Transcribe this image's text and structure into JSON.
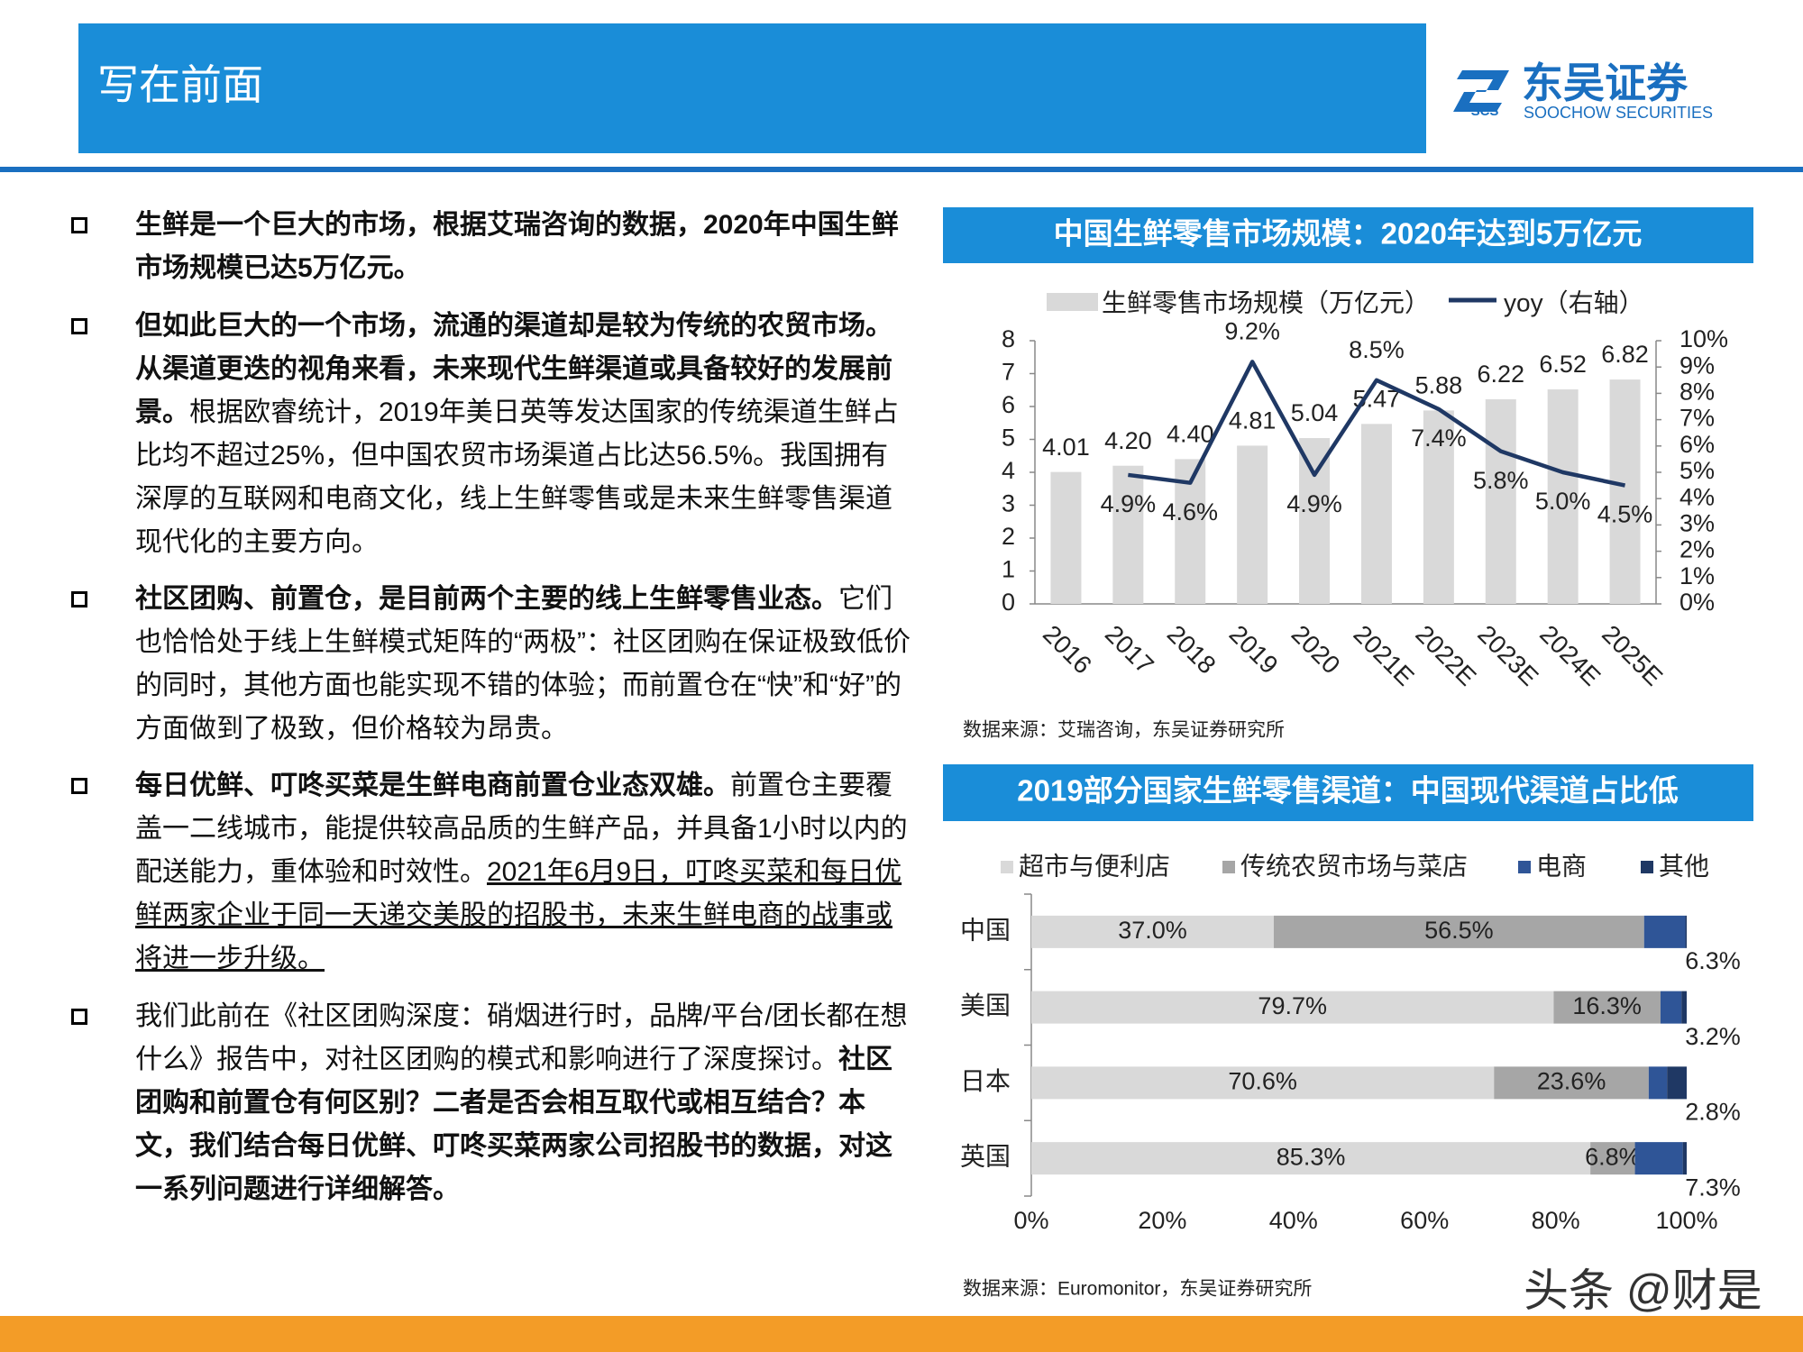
{
  "header": {
    "title": "写在前面",
    "logo_name": "东吴证券",
    "logo_en": "SOOCHOW SECURITIES",
    "logo_abbr": "SCS"
  },
  "bullets": [
    {
      "segments": [
        {
          "text": "生鲜是一个巨大的市场，根据艾瑞咨询的数据，2020年中国生鲜市场规模已达5万亿元。",
          "style": "bold"
        }
      ]
    },
    {
      "segments": [
        {
          "text": "但如此巨大的一个市场，流通的渠道却是较为传统的农贸市场。从渠道更迭的视角来看，未来现代生鲜渠道或具备较好的发展前景。",
          "style": "bold"
        },
        {
          "text": "根据欧睿统计，2019年美日英等发达国家的传统渠道生鲜占比均不超过25%，但中国农贸市场渠道占比达56.5%。我国拥有深厚的互联网和电商文化，线上生鲜零售或是未来生鲜零售渠道现代化的主要方向。",
          "style": "normal"
        }
      ]
    },
    {
      "segments": [
        {
          "text": "社区团购、前置仓，是目前两个主要的线上生鲜零售业态。",
          "style": "bold"
        },
        {
          "text": "它们也恰恰处于线上生鲜模式矩阵的“两极”：社区团购在保证极致低价的同时，其他方面也能实现不错的体验；而前置仓在“快”和“好”的方面做到了极致，但价格较为昂贵。",
          "style": "normal"
        }
      ]
    },
    {
      "segments": [
        {
          "text": "每日优鲜、叮咚买菜是生鲜电商前置仓业态双雄。",
          "style": "bold"
        },
        {
          "text": "前置仓主要覆盖一二线城市，能提供较高品质的生鲜产品，并具备1小时以内的配送能力，重体验和时效性。",
          "style": "normal"
        },
        {
          "text": "2021年6月9日，叮咚买菜和每日优鲜两家企业于同一天递交美股的招股书，未来生鲜电商的战事或将进一步升级。",
          "style": "underline"
        }
      ]
    },
    {
      "segments": [
        {
          "text": "我们此前在《社区团购深度：硝烟进行时，品牌/平台/团长都在想什么》报告中，对社区团购的模式和影响进行了深度探讨。",
          "style": "normal"
        },
        {
          "text": "社区团购和前置仓有何区别？二者是否会相互取代或相互结合？本文，我们结合每日优鲜、叮咚买菜两家公司招股书的数据，对这一系列问题进行详细解答。",
          "style": "bold"
        }
      ]
    }
  ],
  "chart_data": [
    {
      "type": "bar",
      "title": "中国生鲜零售市场规模：2020年达到5万亿元",
      "source": "数据来源：艾瑞咨询，东吴证券研究所",
      "categories": [
        "2016",
        "2017",
        "2018",
        "2019",
        "2020",
        "2021E",
        "2022E",
        "2023E",
        "2024E",
        "2025E"
      ],
      "series": [
        {
          "name": "生鲜零售市场规模（万亿元）",
          "type": "bar",
          "color": "#d9d9d9",
          "values": [
            4.01,
            4.2,
            4.4,
            4.81,
            5.04,
            5.47,
            5.88,
            6.22,
            6.52,
            6.82
          ],
          "value_labels": [
            "4.01",
            "4.20",
            "4.40",
            "4.81",
            "5.04",
            "5.47",
            "5.88",
            "6.22",
            "6.52",
            "6.82"
          ]
        },
        {
          "name": "yoy（右轴）",
          "type": "line",
          "axis": "y2",
          "color": "#1f3864",
          "values": [
            null,
            4.9,
            4.6,
            9.2,
            4.9,
            8.5,
            7.4,
            5.8,
            5.0,
            4.5
          ],
          "value_labels": [
            null,
            "4.9%",
            "4.6%",
            "9.2%",
            "4.9%",
            "8.5%",
            "7.4%",
            "5.8%",
            "5.0%",
            "4.5%"
          ]
        }
      ],
      "ylim": [
        0,
        8
      ],
      "yticks": [
        0,
        1,
        2,
        3,
        4,
        5,
        6,
        7,
        8
      ],
      "y2lim": [
        0,
        10
      ],
      "y2ticks": [
        {
          "value": 0,
          "label": "0%"
        },
        {
          "value": 1,
          "label": "1%"
        },
        {
          "value": 2,
          "label": "2%"
        },
        {
          "value": 3,
          "label": "3%"
        },
        {
          "value": 4,
          "label": "4%"
        },
        {
          "value": 5,
          "label": "5%"
        },
        {
          "value": 6,
          "label": "6%"
        },
        {
          "value": 7,
          "label": "7%"
        },
        {
          "value": 8,
          "label": "8%"
        },
        {
          "value": 9,
          "label": "9%"
        },
        {
          "value": 10,
          "label": "10%"
        }
      ],
      "grid": false
    },
    {
      "type": "stacked",
      "orientation": "horizontal",
      "title": "2019部分国家生鲜零售渠道：中国现代渠道占比低",
      "source": "数据来源：Euromonitor，东吴证券研究所",
      "categories": [
        "中国",
        "美国",
        "日本",
        "英国"
      ],
      "series": [
        {
          "name": "超市与便利店",
          "color": "#d9d9d9",
          "values": [
            37.0,
            79.7,
            70.6,
            85.3
          ],
          "value_labels": [
            "37.0%",
            "79.7%",
            "70.6%",
            "85.3%"
          ]
        },
        {
          "name": "传统农贸市场与菜店",
          "color": "#a6a6a6",
          "values": [
            56.5,
            16.3,
            23.6,
            6.8
          ],
          "value_labels": [
            "56.5%",
            "16.3%",
            "23.6%",
            "6.8%"
          ]
        },
        {
          "name": "电商",
          "color": "#2f5597",
          "values": [
            6.3,
            3.2,
            2.8,
            7.3
          ],
          "value_labels": [
            "6.3%",
            "3.2%",
            "2.8%",
            "7.3%"
          ],
          "label_position": "outside"
        },
        {
          "name": "其他",
          "color": "#1f3864",
          "values": [
            0.2,
            0.8,
            3.0,
            0.6
          ]
        }
      ],
      "xlim": [
        0,
        100
      ],
      "xticks": [
        {
          "value": 0,
          "label": "0%"
        },
        {
          "value": 20,
          "label": "20%"
        },
        {
          "value": 40,
          "label": "40%"
        },
        {
          "value": 60,
          "label": "60%"
        },
        {
          "value": 80,
          "label": "80%"
        },
        {
          "value": 100,
          "label": "100%"
        }
      ],
      "grid": false
    }
  ],
  "watermark": "头条 @财是"
}
